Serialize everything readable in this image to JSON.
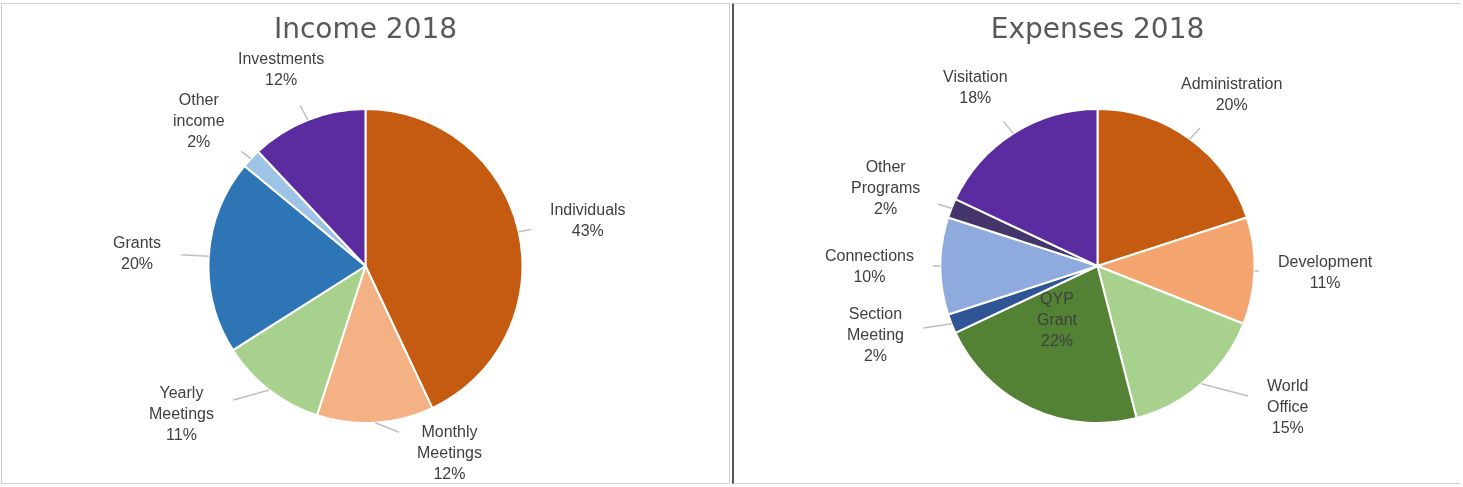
{
  "chart_data": [
    {
      "type": "pie",
      "title": "Income 2018",
      "categories": [
        "Individuals",
        "Monthly Meetings",
        "Yearly Meetings",
        "Grants",
        "Other income",
        "Investments"
      ],
      "values": [
        43,
        12,
        11,
        20,
        2,
        12
      ],
      "value_labels": [
        "43%",
        "12%",
        "11%",
        "20%",
        "2%",
        "12%"
      ],
      "colors": [
        "#c55a11",
        "#f4b183",
        "#a9d18e",
        "#2e75b6",
        "#9dc3e6",
        "#5b2ca0"
      ],
      "legend": false
    },
    {
      "type": "pie",
      "title": "Expenses 2018",
      "categories": [
        "Administration",
        "Development",
        "World Office",
        "QYP Grant",
        "Section Meeting",
        "Connections",
        "Other Programs",
        "Visitation"
      ],
      "values": [
        20,
        11,
        15,
        22,
        2,
        10,
        2,
        18
      ],
      "value_labels": [
        "20%",
        "11%",
        "15%",
        "22%",
        "2%",
        "10%",
        "2%",
        "18%"
      ],
      "colors": [
        "#c55a11",
        "#f4a46f",
        "#a9d18e",
        "#548235",
        "#2f5597",
        "#8faadc",
        "#44366a",
        "#5b2ca0"
      ],
      "legend": false
    }
  ]
}
